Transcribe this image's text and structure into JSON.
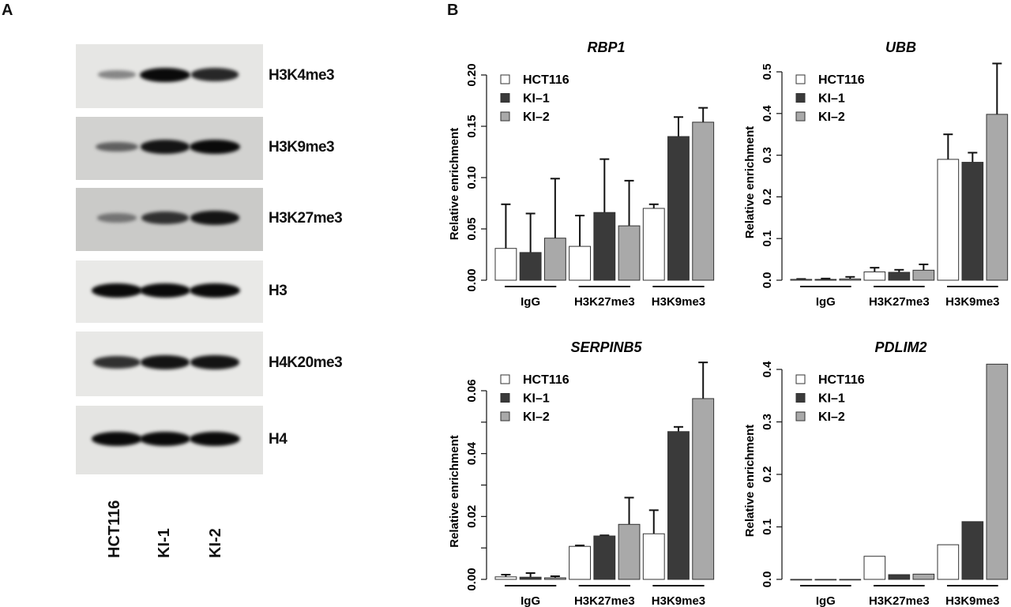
{
  "panel_a": {
    "letter": "A",
    "lanes": [
      "HCT116",
      "KI-1",
      "KI-2"
    ],
    "blots": [
      {
        "label": "H3K4me3",
        "background": "#e6e6e4",
        "band_intensity": [
          0.35,
          1.0,
          0.85
        ]
      },
      {
        "label": "H3K9me3",
        "background": "#d2d2d0",
        "band_intensity": [
          0.55,
          0.95,
          1.0
        ]
      },
      {
        "label": "H3K27me3",
        "background": "#cacac8",
        "band_intensity": [
          0.45,
          0.8,
          0.95
        ]
      },
      {
        "label": "H3",
        "background": "#e9e9e7",
        "band_intensity": [
          1.0,
          1.0,
          1.0
        ]
      },
      {
        "label": "H4K20me3",
        "background": "#e8e8e6",
        "band_intensity": [
          0.8,
          0.95,
          0.95
        ]
      },
      {
        "label": "H4",
        "background": "#e4e4e2",
        "band_intensity": [
          1.0,
          1.0,
          1.0
        ]
      }
    ]
  },
  "panel_b": {
    "letter": "B"
  },
  "chart_data": [
    {
      "type": "bar",
      "title": "RBP1",
      "ylabel": "Relative enrichment",
      "xlabel": "",
      "categories": [
        "IgG",
        "H3K27me3",
        "H3K9me3"
      ],
      "ylim": [
        0,
        0.2
      ],
      "yticks": [
        0,
        0.05,
        0.1,
        0.15,
        0.2
      ],
      "ytick_labels": [
        "0.00",
        "0.05",
        "0.10",
        "0.15",
        "0.20"
      ],
      "legend": "top-left",
      "series": [
        {
          "name": "HCT116",
          "color": "#ffffff",
          "values": [
            0.031,
            0.033,
            0.07
          ],
          "error_top": [
            0.074,
            0.063,
            0.074
          ]
        },
        {
          "name": "KI–1",
          "color": "#3a3a3a",
          "values": [
            0.027,
            0.066,
            0.14
          ],
          "error_top": [
            0.065,
            0.118,
            0.159
          ]
        },
        {
          "name": "KI–2",
          "color": "#a9a9a9",
          "values": [
            0.041,
            0.053,
            0.154
          ],
          "error_top": [
            0.099,
            0.097,
            0.168
          ]
        }
      ]
    },
    {
      "type": "bar",
      "title": "UBB",
      "ylabel": "Relative enrichment",
      "xlabel": "",
      "categories": [
        "IgG",
        "H3K27me3",
        "H3K9me3"
      ],
      "ylim": [
        0,
        0.5
      ],
      "yticks": [
        0,
        0.1,
        0.2,
        0.3,
        0.4,
        0.5
      ],
      "ytick_labels": [
        "0.0",
        "0.1",
        "0.2",
        "0.3",
        "0.4",
        "0.5"
      ],
      "legend": "top-left",
      "series": [
        {
          "name": "HCT116",
          "color": "#ffffff",
          "values": [
            0.002,
            0.02,
            0.29
          ],
          "error_top": [
            0.003,
            0.03,
            0.35
          ]
        },
        {
          "name": "KI–1",
          "color": "#3a3a3a",
          "values": [
            0.002,
            0.019,
            0.283
          ],
          "error_top": [
            0.004,
            0.025,
            0.306
          ]
        },
        {
          "name": "KI–2",
          "color": "#a9a9a9",
          "values": [
            0.003,
            0.024,
            0.398
          ],
          "error_top": [
            0.008,
            0.038,
            0.52
          ]
        }
      ]
    },
    {
      "type": "bar",
      "title": "SERPINB5",
      "ylabel": "Relative enrichment",
      "xlabel": "",
      "categories": [
        "IgG",
        "H3K27me3",
        "H3K9me3"
      ],
      "ylim": [
        0,
        0.06
      ],
      "yticks": [
        0,
        0.01,
        0.02,
        0.03,
        0.04,
        0.05,
        0.06
      ],
      "ytick_labels": [
        "0.00",
        "",
        "0.02",
        "",
        "0.04",
        "",
        "0.06"
      ],
      "legend": "top-left",
      "series": [
        {
          "name": "HCT116",
          "color": "#ffffff",
          "values": [
            0.0008,
            0.0105,
            0.0145
          ],
          "error_top": [
            0.0015,
            0.0108,
            0.022
          ]
        },
        {
          "name": "KI–1",
          "color": "#3a3a3a",
          "values": [
            0.0007,
            0.0138,
            0.047
          ],
          "error_top": [
            0.002,
            0.014,
            0.0485
          ]
        },
        {
          "name": "KI–2",
          "color": "#a9a9a9",
          "values": [
            0.0005,
            0.0175,
            0.0575
          ],
          "error_top": [
            0.001,
            0.026,
            0.069
          ]
        }
      ]
    },
    {
      "type": "bar",
      "title": "PDLIM2",
      "ylabel": "Relative enrichment",
      "xlabel": "",
      "categories": [
        "IgG",
        "H3K27me3",
        "H3K9me3"
      ],
      "ylim": [
        0,
        0.4
      ],
      "yticks": [
        0,
        0.1,
        0.2,
        0.3,
        0.4
      ],
      "ytick_labels": [
        "0.0",
        "0.1",
        "0.2",
        "0.3",
        "0.4"
      ],
      "legend": "top-left",
      "series": [
        {
          "name": "HCT116",
          "color": "#ffffff",
          "values": [
            0,
            0.044,
            0.066
          ],
          "error_top": [
            null,
            null,
            null
          ]
        },
        {
          "name": "KI–1",
          "color": "#3a3a3a",
          "values": [
            0,
            0.009,
            0.11
          ],
          "error_top": [
            null,
            null,
            null
          ]
        },
        {
          "name": "KI–2",
          "color": "#a9a9a9",
          "values": [
            0,
            0.01,
            0.41
          ],
          "error_top": [
            null,
            null,
            null
          ]
        }
      ]
    }
  ]
}
